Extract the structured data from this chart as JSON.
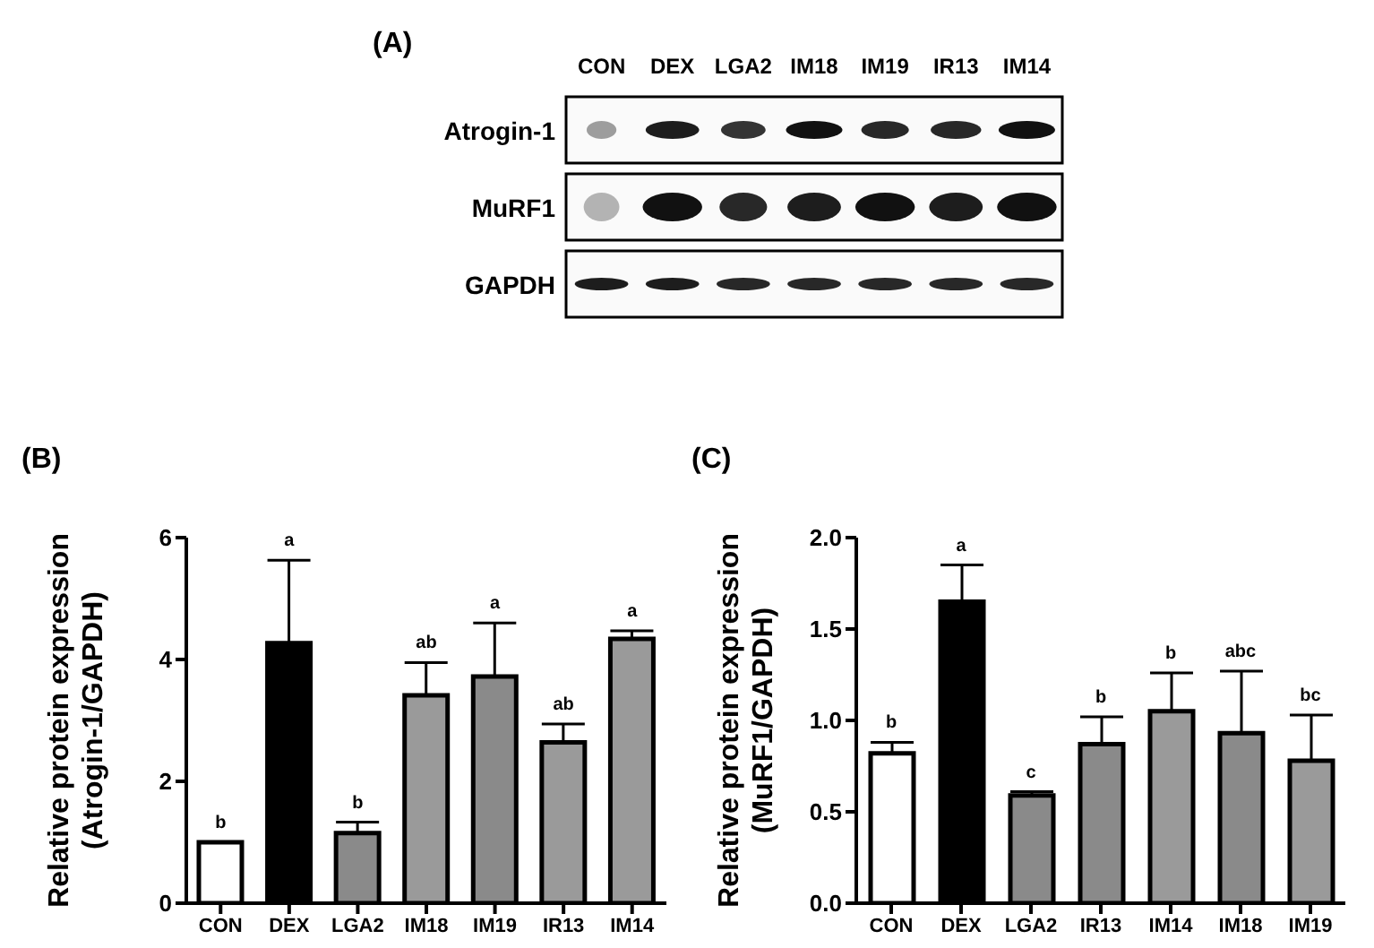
{
  "chart_data": [
    {
      "type": "other",
      "title": "(A)",
      "categories": [
        "CON",
        "DEX",
        "LGA2",
        "IM18",
        "IM19",
        "IR13",
        "IM14"
      ],
      "annotations": [
        "Atrogin-1",
        "MuRF1",
        "GAPDH"
      ]
    },
    {
      "type": "bar",
      "title": "(B)",
      "ylabel": "Relative protein expression\n(Atrogin-1/GAPDH)",
      "categories": [
        "CON",
        "DEX",
        "LGA2",
        "IM18",
        "IM19",
        "IR13",
        "IM14"
      ],
      "values": [
        1.0,
        4.27,
        1.15,
        3.41,
        3.72,
        2.64,
        4.34
      ],
      "errors": [
        null,
        [
          4.27,
          5.63
        ],
        [
          1.15,
          1.33
        ],
        [
          3.41,
          3.95
        ],
        [
          3.72,
          4.6
        ],
        [
          2.64,
          2.94
        ],
        [
          4.34,
          4.47
        ]
      ],
      "colors": [
        "#ffffff",
        "#000000",
        "#8a8a8a",
        "#9a9a9a",
        "#8a8a8a",
        "#9a9a9a",
        "#9a9a9a"
      ],
      "ylim": [
        0,
        6
      ],
      "yticks": [
        0,
        2,
        4,
        6
      ],
      "grid": false,
      "legend": false,
      "annotations": [
        {
          "text": "b",
          "x": "CON",
          "y": 1.0
        },
        {
          "text": "a",
          "x": "DEX",
          "y": 5.63
        },
        {
          "text": "b",
          "x": "LGA2",
          "y": 1.33
        },
        {
          "text": "ab",
          "x": "IM18",
          "y": 3.95
        },
        {
          "text": "a",
          "x": "IM19",
          "y": 4.6
        },
        {
          "text": "ab",
          "x": "IR13",
          "y": 2.94
        },
        {
          "text": "a",
          "x": "IM14",
          "y": 4.47
        }
      ]
    },
    {
      "type": "bar",
      "title": "(C)",
      "ylabel": "Relative protein expression\n(MuRF1/GAPDH)",
      "categories": [
        "CON",
        "DEX",
        "LGA2",
        "IR13",
        "IM14",
        "IM18",
        "IM19"
      ],
      "values": [
        0.82,
        1.65,
        0.59,
        0.87,
        1.05,
        0.93,
        0.78
      ],
      "errors": [
        [
          0.82,
          0.88
        ],
        [
          1.65,
          1.85
        ],
        [
          0.59,
          0.61
        ],
        [
          0.87,
          1.02
        ],
        [
          1.05,
          1.26
        ],
        [
          0.93,
          1.27
        ],
        [
          0.78,
          1.03
        ]
      ],
      "colors": [
        "#ffffff",
        "#000000",
        "#8a8a8a",
        "#8a8a8a",
        "#9a9a9a",
        "#8a8a8a",
        "#9a9a9a"
      ],
      "ylim": [
        0,
        2.0
      ],
      "yticks": [
        {
          "value": 0,
          "label": "0.0"
        },
        {
          "value": 0.5,
          "label": "0.5"
        },
        {
          "value": 1.0,
          "label": "1.0"
        },
        {
          "value": 1.5,
          "label": "1.5"
        },
        {
          "value": 2.0,
          "label": "2.0"
        }
      ],
      "grid": false,
      "legend": false,
      "annotations": [
        {
          "text": "b",
          "x": "CON",
          "y": 0.88
        },
        {
          "text": "a",
          "x": "DEX",
          "y": 1.85
        },
        {
          "text": "c",
          "x": "LGA2",
          "y": 0.61
        },
        {
          "text": "b",
          "x": "IR13",
          "y": 1.02
        },
        {
          "text": "b",
          "x": "IM14",
          "y": 1.26
        },
        {
          "text": "abc",
          "x": "IM18",
          "y": 1.27
        },
        {
          "text": "bc",
          "x": "IM19",
          "y": 1.03
        }
      ]
    }
  ]
}
